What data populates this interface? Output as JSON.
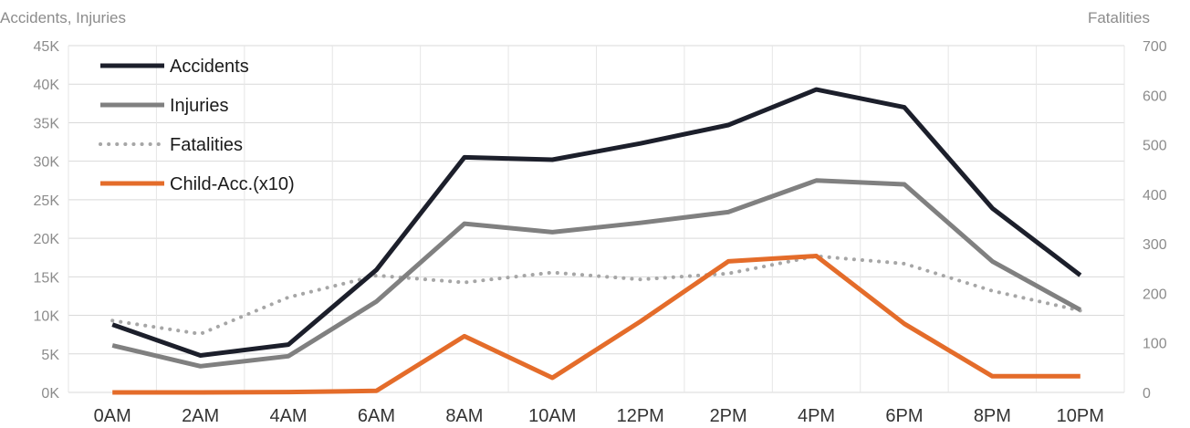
{
  "chart_data": {
    "type": "line",
    "title": "",
    "ylabel_left": "Accidents, Injuries",
    "ylabel_right": "Fatalities",
    "categories": [
      "0AM",
      "2AM",
      "4AM",
      "6AM",
      "8AM",
      "10AM",
      "12PM",
      "2PM",
      "4PM",
      "6PM",
      "8PM",
      "10PM"
    ],
    "left_axis": {
      "ylim": [
        0,
        45000
      ],
      "ticks": [
        0,
        5000,
        10000,
        15000,
        20000,
        25000,
        30000,
        35000,
        40000,
        45000
      ],
      "tick_labels": [
        "0K",
        "5K",
        "10K",
        "15K",
        "20K",
        "25K",
        "30K",
        "35K",
        "40K",
        "45K"
      ]
    },
    "right_axis": {
      "ylim": [
        0,
        700
      ],
      "ticks": [
        0,
        100,
        200,
        300,
        400,
        500,
        600,
        700
      ],
      "tick_labels": [
        "0",
        "100",
        "200",
        "300",
        "400",
        "500",
        "600",
        "700"
      ]
    },
    "grid": true,
    "legend_position": "top-left",
    "series": [
      {
        "name": "Accidents",
        "axis": "left",
        "style": "solid",
        "color": "#1c1f2b",
        "values": [
          8800,
          4800,
          6200,
          15900,
          30500,
          30200,
          32300,
          34700,
          39300,
          37000,
          23900,
          15200
        ]
      },
      {
        "name": "Injuries",
        "axis": "left",
        "style": "solid",
        "color": "#808080",
        "values": [
          6100,
          3400,
          4700,
          11800,
          21900,
          20800,
          22000,
          23400,
          27500,
          27000,
          17000,
          10700
        ]
      },
      {
        "name": "Fatalities",
        "axis": "right",
        "style": "dotted",
        "color": "#a6a6a6",
        "values": [
          145,
          118,
          192,
          236,
          222,
          242,
          228,
          240,
          275,
          260,
          205,
          165
        ]
      },
      {
        "name": "Child-Acc.(x10)",
        "axis": "left",
        "style": "solid",
        "color": "#e46c2a",
        "values": [
          0,
          0,
          50,
          200,
          7300,
          1900,
          9200,
          17000,
          17700,
          8900,
          2100,
          2100
        ]
      }
    ]
  }
}
